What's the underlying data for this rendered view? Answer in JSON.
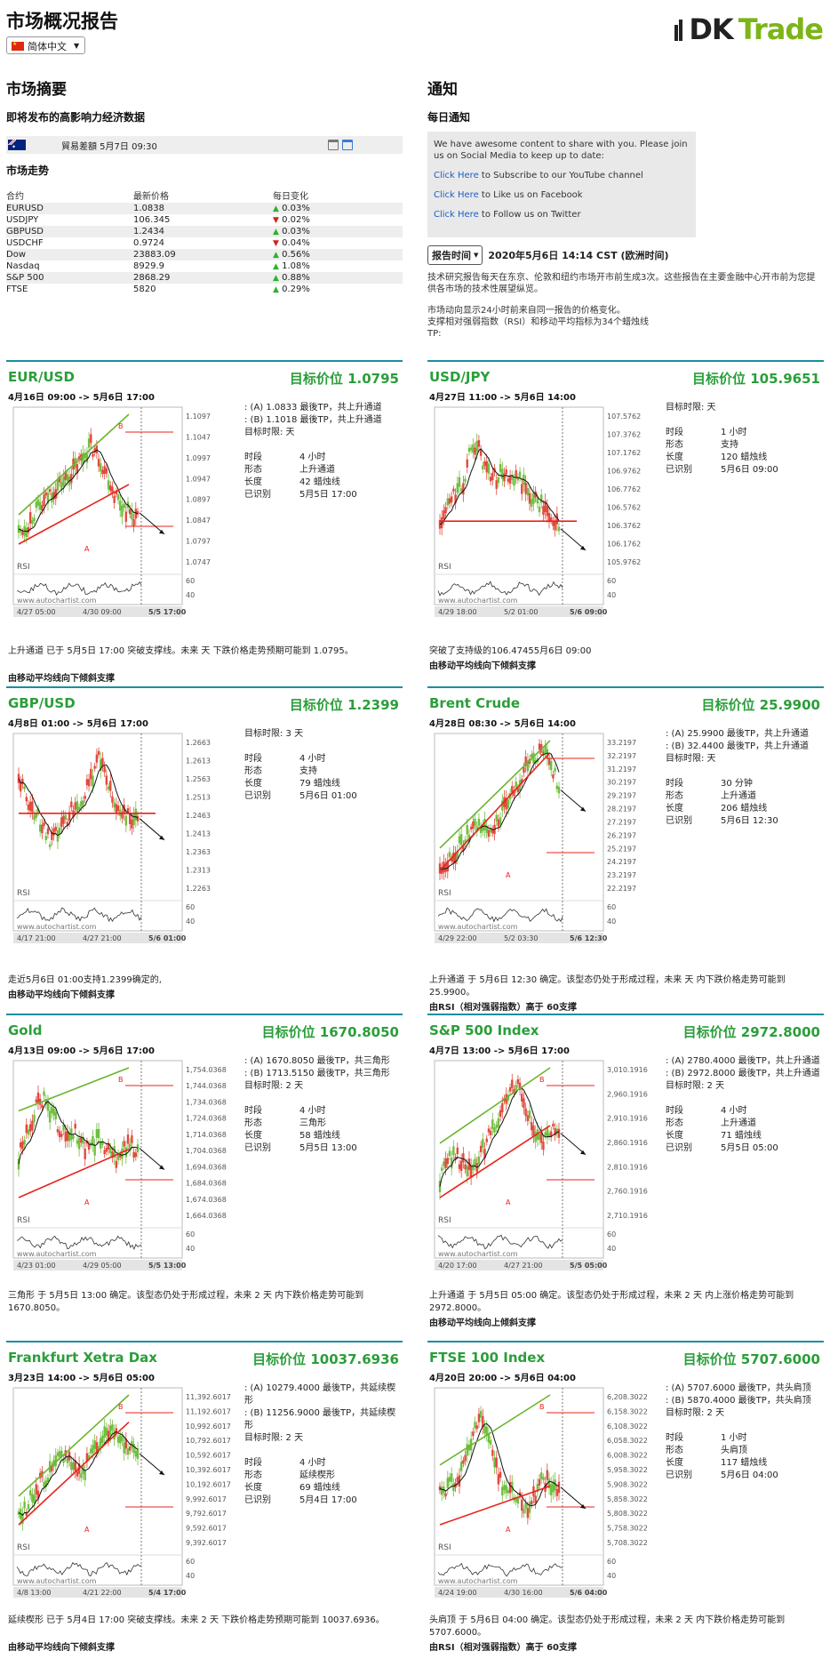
{
  "header": {
    "title": "市场概况报告",
    "language": "简体中文",
    "logo_dk": "DK",
    "logo_trade": "Trade"
  },
  "summary": {
    "title": "市场摘要",
    "events_title": "即将发布的高影响力经济数据",
    "event": "貿易差額 5月7日 09:30",
    "trend_title": "市场走势",
    "columns": [
      "合约",
      "最新价格",
      "每日变化"
    ],
    "rows": [
      {
        "name": "EURUSD",
        "price": "1.0838",
        "dir": "up",
        "change": "0.03%"
      },
      {
        "name": "USDJPY",
        "price": "106.345",
        "dir": "down",
        "change": "0.02%"
      },
      {
        "name": "GBPUSD",
        "price": "1.2434",
        "dir": "up",
        "change": "0.03%"
      },
      {
        "name": "USDCHF",
        "price": "0.9724",
        "dir": "down",
        "change": "0.04%"
      },
      {
        "name": "Dow",
        "price": "23883.09",
        "dir": "up",
        "change": "0.56%"
      },
      {
        "name": "Nasdaq",
        "price": "8929.9",
        "dir": "up",
        "change": "1.08%"
      },
      {
        "name": "S&P 500",
        "price": "2868.29",
        "dir": "up",
        "change": "0.88%"
      },
      {
        "name": "FTSE",
        "price": "5820",
        "dir": "up",
        "change": "0.29%"
      }
    ]
  },
  "notice": {
    "title": "通知",
    "daily_title": "每日通知",
    "intro": "We have awesome content to share with you. Please join us on Social Media to keep up to date:",
    "links": [
      {
        "link": "Click Here",
        "text": " to Subscribe to our YouTube channel"
      },
      {
        "link": "Click Here",
        "text": " to Like us on Facebook"
      },
      {
        "link": "Click Here",
        "text": " to Follow us on Twitter"
      }
    ],
    "report_button": "报告时间",
    "report_time": "2020年5月6日 14:14 CST (欧洲时间)",
    "para1": "技术研究报告每天在东京、伦敦和纽约市场开市前生成3次。这些报告在主要金融中心开市前为您提供各市场的技术性展望纵览。",
    "para2_l1": "市场动向显示24小时前来自同一报告的价格变化。",
    "para2_l2": "支撑相对强弱指数（RSI）和移动平均指标为34个蜡烛线",
    "para2_l3": "TP:"
  },
  "cards": [
    {
      "title": "EUR/USD",
      "target": "目标价位 1.0795",
      "period": "4月16日 09:00 -> 5月6日 17:00",
      "info": [
        ": (A) 1.0833 最後TP，共上升通道",
        ": (B) 1.1018 最後TP，共上升通道",
        "目标时限: 天"
      ],
      "kv": [
        [
          "时段",
          "4 小时"
        ],
        [
          "形态",
          "上升通道"
        ],
        [
          "长度",
          "42 蜡烛线"
        ],
        [
          "已识别",
          "5月5日 17:00"
        ]
      ],
      "desc": "上升通道 已于 5月5日 17:00 突破支撑线。未来 天 下跌价格走势预期可能到 1.0795。",
      "desc2": "由移动平均线向下倾斜支撑",
      "yticks": [
        "1.1097",
        "1.1047",
        "1.0997",
        "1.0947",
        "1.0897",
        "1.0847",
        "1.0797",
        "1.0747"
      ],
      "xticks": [
        "4/27 05:00",
        "4/30 09:00",
        "5/5 17:00"
      ],
      "rsi": [
        "60",
        "40"
      ],
      "watermark": "www.autochartist.com",
      "rsi_label": "RSI",
      "labels": [
        "B",
        "A"
      ]
    },
    {
      "title": "USD/JPY",
      "target": "目标价位 105.9651",
      "period": "4月27日 11:00 -> 5月6日 14:00",
      "info": [
        "目标时限: 天"
      ],
      "kv": [
        [
          "时段",
          "1 小时"
        ],
        [
          "形态",
          "支持"
        ],
        [
          "长度",
          "120 蜡烛线"
        ],
        [
          "已识别",
          "5月6日 09:00"
        ]
      ],
      "desc": "突破了支持级的106.47455月6日 09:00",
      "desc2": "由移动平均线向下倾斜支撑",
      "yticks": [
        "107.5762",
        "107.3762",
        "107.1762",
        "106.9762",
        "106.7762",
        "106.5762",
        "106.3762",
        "106.1762",
        "105.9762"
      ],
      "xticks": [
        "4/29 18:00",
        "5/2 01:00",
        "5/6 09:00"
      ],
      "rsi": [
        "60",
        "40"
      ],
      "watermark": "www.autochartist.com",
      "rsi_label": "RSI",
      "labels": []
    },
    {
      "title": "GBP/USD",
      "target": "目标价位 1.2399",
      "period": "4月8日 01:00 -> 5月6日 17:00",
      "info": [
        "目标时限: 3 天"
      ],
      "kv": [
        [
          "时段",
          "4 小时"
        ],
        [
          "形态",
          "支持"
        ],
        [
          "长度",
          "79 蜡烛线"
        ],
        [
          "已识别",
          "5月6日 01:00"
        ]
      ],
      "desc": "走近5月6日 01:00支持1.2399确定的,",
      "desc2": "由移动平均线向下倾斜支撑",
      "yticks": [
        "1.2663",
        "1.2613",
        "1.2563",
        "1.2513",
        "1.2463",
        "1.2413",
        "1.2363",
        "1.2313",
        "1.2263"
      ],
      "xticks": [
        "4/17 21:00",
        "4/27 21:00",
        "5/6 01:00"
      ],
      "rsi": [
        "60",
        "40"
      ],
      "watermark": "www.autochartist.com",
      "rsi_label": "RSI",
      "labels": []
    },
    {
      "title": "Brent Crude",
      "target": "目标价位 25.9900",
      "period": "4月28日 08:30 -> 5月6日 14:00",
      "info": [
        ": (A) 25.9900 最後TP，共上升通道",
        ": (B) 32.4400 最後TP，共上升通道",
        "目标时限: 天"
      ],
      "kv": [
        [
          "时段",
          "30 分钟"
        ],
        [
          "形态",
          "上升通道"
        ],
        [
          "长度",
          "206 蜡烛线"
        ],
        [
          "已识别",
          "5月6日 12:30"
        ]
      ],
      "desc": "上升通道 于 5月6日 12:30 确定。该型态仍处于形成过程，未来 天 内下跌价格走势可能到 25.9900。",
      "desc2": "由RSI（相对强弱指数）高于 60支撑",
      "yticks": [
        "33.2197",
        "32.2197",
        "31.2197",
        "30.2197",
        "29.2197",
        "28.2197",
        "27.2197",
        "26.2197",
        "25.2197",
        "24.2197",
        "23.2197",
        "22.2197"
      ],
      "xticks": [
        "4/29 22:00",
        "5/2 03:30",
        "5/6 12:30"
      ],
      "rsi": [
        "60",
        "40"
      ],
      "watermark": "www.autochartist.com",
      "rsi_label": "RSI",
      "labels": [
        "B",
        "A"
      ]
    },
    {
      "title": "Gold",
      "target": "目标价位 1670.8050",
      "period": "4月13日 09:00 -> 5月6日 17:00",
      "info": [
        ": (A) 1670.8050 最後TP，共三角形",
        ": (B) 1713.5150 最後TP，共三角形",
        "目标时限: 2 天"
      ],
      "kv": [
        [
          "时段",
          "4 小时"
        ],
        [
          "形态",
          "三角形"
        ],
        [
          "长度",
          "58 蜡烛线"
        ],
        [
          "已识别",
          "5月5日 13:00"
        ]
      ],
      "desc": "三角形 于 5月5日 13:00 确定。该型态仍处于形成过程，未来 2 天 内下跌价格走势可能到 1670.8050。",
      "desc2": "",
      "yticks": [
        "1,754.0368",
        "1,744.0368",
        "1,734.0368",
        "1,724.0368",
        "1,714.0368",
        "1,704.0368",
        "1,694.0368",
        "1,684.0368",
        "1,674.0368",
        "1,664.0368"
      ],
      "xticks": [
        "4/23 01:00",
        "4/29 05:00",
        "5/5 13:00"
      ],
      "rsi": [
        "60",
        "40"
      ],
      "watermark": "www.autochartist.com",
      "rsi_label": "RSI",
      "labels": [
        "B",
        "A"
      ]
    },
    {
      "title": "S&P 500 Index",
      "target": "目标价位 2972.8000",
      "period": "4月7日 13:00 -> 5月6日 17:00",
      "info": [
        ": (A) 2780.4000 最後TP，共上升通道",
        ": (B) 2972.8000 最後TP，共上升通道",
        "目标时限: 2 天"
      ],
      "kv": [
        [
          "时段",
          "4 小时"
        ],
        [
          "形态",
          "上升通道"
        ],
        [
          "长度",
          "71 蜡烛线"
        ],
        [
          "已识别",
          "5月5日 05:00"
        ]
      ],
      "desc": "上升通道 于 5月5日 05:00 确定。该型态仍处于形成过程，未来 2 天 内上涨价格走势可能到 2972.8000。",
      "desc2": "由移动平均线向上倾斜支撑",
      "yticks": [
        "3,010.1916",
        "2,960.1916",
        "2,910.1916",
        "2,860.1916",
        "2,810.1916",
        "2,760.1916",
        "2,710.1916"
      ],
      "xticks": [
        "4/20 17:00",
        "4/27 21:00",
        "5/5 05:00"
      ],
      "rsi": [
        "60",
        "40"
      ],
      "watermark": "www.autochartist.com",
      "rsi_label": "RSI",
      "labels": [
        "B",
        "A"
      ]
    },
    {
      "title": "Frankfurt Xetra Dax",
      "target": "目标价位 10037.6936",
      "period": "3月23日 14:00 -> 5月6日 05:00",
      "info": [
        ": (A) 10279.4000 最後TP，共延续楔",
        "形",
        ": (B) 11256.9000 最後TP，共延续楔",
        "形",
        "目标时限: 2 天"
      ],
      "kv": [
        [
          "时段",
          "4 小时"
        ],
        [
          "形态",
          "延续楔形"
        ],
        [
          "长度",
          "69 蜡烛线"
        ],
        [
          "已识别",
          "5月4日 17:00"
        ]
      ],
      "desc": "延续楔形 已于 5月4日 17:00 突破支撑线。未来 2 天 下跌价格走势预期可能到 10037.6936。",
      "desc2": "由移动平均线向下倾斜支撑",
      "yticks": [
        "11,392.6017",
        "11,192.6017",
        "10,992.6017",
        "10,792.6017",
        "10,592.6017",
        "10,392.6017",
        "10,192.6017",
        "9,992.6017",
        "9,792.6017",
        "9,592.6017",
        "9,392.6017"
      ],
      "xticks": [
        "4/8 13:00",
        "4/21 22:00",
        "5/4 17:00"
      ],
      "rsi": [
        "60",
        "40"
      ],
      "watermark": "www.autochartist.com",
      "rsi_label": "RSI",
      "labels": [
        "B",
        "A"
      ]
    },
    {
      "title": "FTSE 100 Index",
      "target": "目标价位 5707.6000",
      "period": "4月20日 20:00 -> 5月6日 04:00",
      "info": [
        ": (A) 5707.6000 最後TP，共头肩顶",
        ": (B) 5870.4000 最後TP，共头肩顶",
        "目标时限: 2 天"
      ],
      "kv": [
        [
          "时段",
          "1 小时"
        ],
        [
          "形态",
          "头肩顶"
        ],
        [
          "长度",
          "117 蜡烛线"
        ],
        [
          "已识别",
          "5月6日 04:00"
        ]
      ],
      "desc": "头肩顶 于 5月6日 04:00 确定。该型态仍处于形成过程，未来 2 天 内下跌价格走势可能到 5707.6000。",
      "desc2": "由RSI（相对强弱指数）高于 60支撑",
      "yticks": [
        "6,208.3022",
        "6,158.3022",
        "6,108.3022",
        "6,058.3022",
        "6,008.3022",
        "5,958.3022",
        "5,908.3022",
        "5,858.3022",
        "5,808.3022",
        "5,758.3022",
        "5,708.3022"
      ],
      "xticks": [
        "4/24 19:00",
        "4/30 16:00",
        "5/6 04:00"
      ],
      "rsi": [
        "60",
        "40"
      ],
      "watermark": "www.autochartist.com",
      "rsi_label": "RSI",
      "labels": [
        "B",
        "A"
      ]
    }
  ],
  "colors": {
    "green": "#2a9e3a",
    "teal_rule": "#1c8ea0",
    "candle_up": "#6fbf3f",
    "candle_down": "#e2493d",
    "support": "#e8231b",
    "channel": "#6ab52e",
    "link": "#1a5fc7"
  }
}
